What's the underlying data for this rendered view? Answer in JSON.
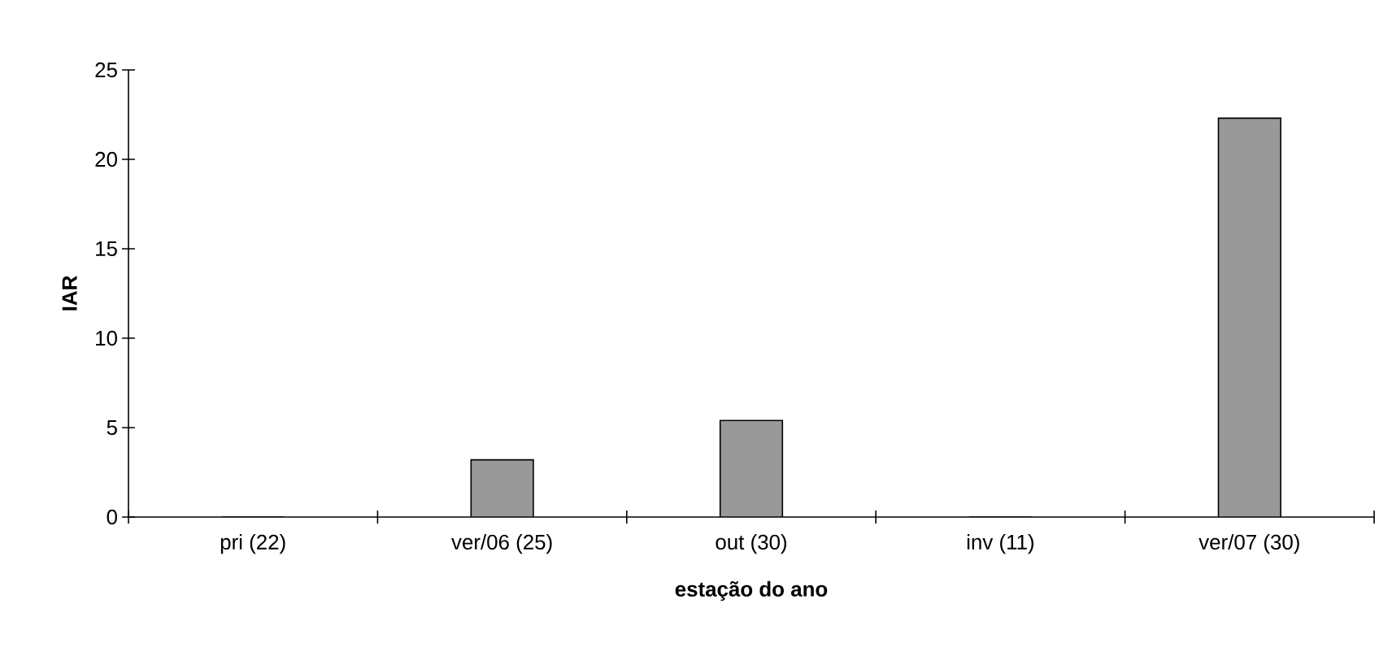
{
  "chart_data": {
    "type": "bar",
    "xlabel": "estação do ano",
    "ylabel": "IAR",
    "categories": [
      "pri (22)",
      "ver/06 (25)",
      "out (30)",
      "inv (11)",
      "ver/07 (30)"
    ],
    "values": [
      0,
      3.2,
      5.4,
      0,
      22.3
    ],
    "color": "#999999",
    "ylim": [
      0,
      25
    ],
    "yticks": [
      0,
      5,
      10,
      15,
      20,
      25
    ],
    "grid": false
  }
}
